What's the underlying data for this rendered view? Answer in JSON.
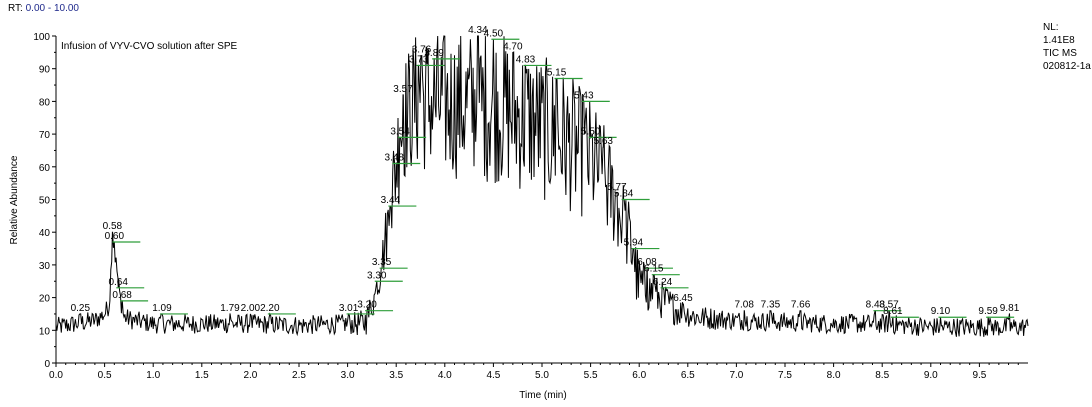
{
  "header": {
    "rt_label": "RT:",
    "rt_range": "0.00 - 10.00"
  },
  "normalization": {
    "nl_label": "NL:",
    "nl_value": "1.41E8",
    "scan_type": "TIC  MS",
    "file_name": "020812-1a"
  },
  "colors": {
    "trace": "#000000",
    "peak_marker": "#2e9e3a",
    "rt_range": "#1f2a8c"
  },
  "chart_data": {
    "type": "line",
    "title": "Infusion of VYV-CVO solution after SPE",
    "xlabel": "Time (min)",
    "ylabel": "Relative Abundance",
    "xlim": [
      0,
      10
    ],
    "ylim": [
      0,
      100
    ],
    "x_ticks": [
      "0.0",
      "0.5",
      "1.0",
      "1.5",
      "2.0",
      "2.5",
      "3.0",
      "3.5",
      "4.0",
      "4.5",
      "5.0",
      "5.5",
      "6.0",
      "6.5",
      "7.0",
      "7.5",
      "8.0",
      "8.5",
      "9.0",
      "9.5"
    ],
    "y_ticks": [
      "0",
      "10",
      "20",
      "30",
      "40",
      "50",
      "60",
      "70",
      "80",
      "90",
      "100"
    ],
    "grid": false,
    "profile": [
      [
        0.0,
        11
      ],
      [
        0.2,
        12
      ],
      [
        0.4,
        13
      ],
      [
        0.5,
        15
      ],
      [
        0.55,
        18
      ],
      [
        0.58,
        39
      ],
      [
        0.62,
        30
      ],
      [
        0.66,
        20
      ],
      [
        0.7,
        14
      ],
      [
        0.8,
        13
      ],
      [
        1.0,
        12
      ],
      [
        1.5,
        12
      ],
      [
        2.0,
        12
      ],
      [
        2.5,
        11.5
      ],
      [
        3.0,
        12
      ],
      [
        3.15,
        12
      ],
      [
        3.2,
        13
      ],
      [
        3.25,
        18
      ],
      [
        3.3,
        22
      ],
      [
        3.35,
        30
      ],
      [
        3.4,
        40
      ],
      [
        3.44,
        46
      ],
      [
        3.5,
        62
      ],
      [
        3.55,
        70
      ],
      [
        3.6,
        76
      ],
      [
        3.7,
        80
      ],
      [
        3.8,
        80
      ],
      [
        4.0,
        79
      ],
      [
        4.3,
        79
      ],
      [
        4.5,
        79
      ],
      [
        4.7,
        76
      ],
      [
        4.9,
        74
      ],
      [
        5.1,
        70
      ],
      [
        5.3,
        67
      ],
      [
        5.5,
        62
      ],
      [
        5.6,
        58
      ],
      [
        5.75,
        50
      ],
      [
        5.9,
        38
      ],
      [
        5.95,
        30
      ],
      [
        6.0,
        24
      ],
      [
        6.1,
        22
      ],
      [
        6.2,
        20
      ],
      [
        6.4,
        16
      ],
      [
        6.6,
        14
      ],
      [
        7.0,
        13
      ],
      [
        7.5,
        12.5
      ],
      [
        8.0,
        12
      ],
      [
        8.5,
        12
      ],
      [
        9.0,
        11
      ],
      [
        9.5,
        11
      ],
      [
        9.85,
        11
      ],
      [
        10.0,
        11
      ]
    ],
    "noise": [
      [
        0.0,
        3
      ],
      [
        0.5,
        3
      ],
      [
        1.0,
        3
      ],
      [
        3.0,
        3
      ],
      [
        3.35,
        6
      ],
      [
        3.5,
        18
      ],
      [
        3.75,
        22
      ],
      [
        4.5,
        24
      ],
      [
        5.2,
        22
      ],
      [
        5.6,
        18
      ],
      [
        5.9,
        12
      ],
      [
        6.1,
        7
      ],
      [
        6.5,
        4
      ],
      [
        7.0,
        3
      ],
      [
        10.0,
        3
      ]
    ],
    "series": [
      {
        "name": "",
        "peaks": [
          {
            "x": 0.25,
            "y": 15,
            "label": "0.25",
            "mark": false
          },
          {
            "x": 0.58,
            "y": 40,
            "label": "0.58",
            "mark": false
          },
          {
            "x": 0.6,
            "y": 37,
            "label": "0.60",
            "mark": true
          },
          {
            "x": 0.64,
            "y": 23,
            "label": "0.64",
            "mark": true
          },
          {
            "x": 0.68,
            "y": 19,
            "label": "0.68",
            "mark": true
          },
          {
            "x": 1.09,
            "y": 15,
            "label": "1.09",
            "mark": true
          },
          {
            "x": 1.79,
            "y": 15,
            "label": "1.79",
            "mark": false
          },
          {
            "x": 2.0,
            "y": 15,
            "label": "2.00",
            "mark": false
          },
          {
            "x": 2.2,
            "y": 15,
            "label": "2.20",
            "mark": true
          },
          {
            "x": 3.01,
            "y": 15,
            "label": "3.01",
            "mark": true
          },
          {
            "x": 3.2,
            "y": 16,
            "label": "3.20",
            "mark": true
          },
          {
            "x": 3.3,
            "y": 25,
            "label": "3.30",
            "mark": true
          },
          {
            "x": 3.35,
            "y": 29,
            "label": "3.35",
            "mark": true
          },
          {
            "x": 3.44,
            "y": 48,
            "label": "3.44",
            "mark": true
          },
          {
            "x": 3.48,
            "y": 61,
            "label": "3.48",
            "mark": true
          },
          {
            "x": 3.54,
            "y": 69,
            "label": "3.54",
            "mark": true
          },
          {
            "x": 3.57,
            "y": 82,
            "label": "3.57",
            "mark": false
          },
          {
            "x": 3.73,
            "y": 91,
            "label": "3.73",
            "mark": true
          },
          {
            "x": 3.76,
            "y": 94,
            "label": "3.76",
            "mark": false
          },
          {
            "x": 3.89,
            "y": 93,
            "label": "3.89",
            "mark": true
          },
          {
            "x": 4.34,
            "y": 100,
            "label": "4.34",
            "mark": false
          },
          {
            "x": 4.5,
            "y": 99,
            "label": "4.50",
            "mark": true
          },
          {
            "x": 4.7,
            "y": 95,
            "label": "4.70",
            "mark": false
          },
          {
            "x": 4.83,
            "y": 91,
            "label": "4.83",
            "mark": true
          },
          {
            "x": 5.15,
            "y": 87,
            "label": "5.15",
            "mark": true
          },
          {
            "x": 5.43,
            "y": 80,
            "label": "5.43",
            "mark": true
          },
          {
            "x": 5.5,
            "y": 69,
            "label": "5.50",
            "mark": true
          },
          {
            "x": 5.63,
            "y": 66,
            "label": "5.63",
            "mark": false
          },
          {
            "x": 5.77,
            "y": 52,
            "label": "5.77",
            "mark": false
          },
          {
            "x": 5.84,
            "y": 50,
            "label": "5.84",
            "mark": true
          },
          {
            "x": 5.94,
            "y": 35,
            "label": "5.94",
            "mark": true
          },
          {
            "x": 6.08,
            "y": 29,
            "label": "6.08",
            "mark": true
          },
          {
            "x": 6.15,
            "y": 27,
            "label": "6.15",
            "mark": true
          },
          {
            "x": 6.24,
            "y": 23,
            "label": "6.24",
            "mark": true
          },
          {
            "x": 6.45,
            "y": 18,
            "label": "6.45",
            "mark": false
          },
          {
            "x": 7.08,
            "y": 16,
            "label": "7.08",
            "mark": false
          },
          {
            "x": 7.35,
            "y": 16,
            "label": "7.35",
            "mark": false
          },
          {
            "x": 7.66,
            "y": 16,
            "label": "7.66",
            "mark": false
          },
          {
            "x": 8.43,
            "y": 16,
            "label": "8.43",
            "mark": true
          },
          {
            "x": 8.57,
            "y": 16,
            "label": "8.57",
            "mark": false
          },
          {
            "x": 8.61,
            "y": 14,
            "label": "8.61",
            "mark": true
          },
          {
            "x": 9.1,
            "y": 14,
            "label": "9.10",
            "mark": true
          },
          {
            "x": 9.59,
            "y": 14,
            "label": "9.59",
            "mark": true
          },
          {
            "x": 9.81,
            "y": 15,
            "label": "9.81",
            "mark": false
          }
        ]
      }
    ]
  }
}
